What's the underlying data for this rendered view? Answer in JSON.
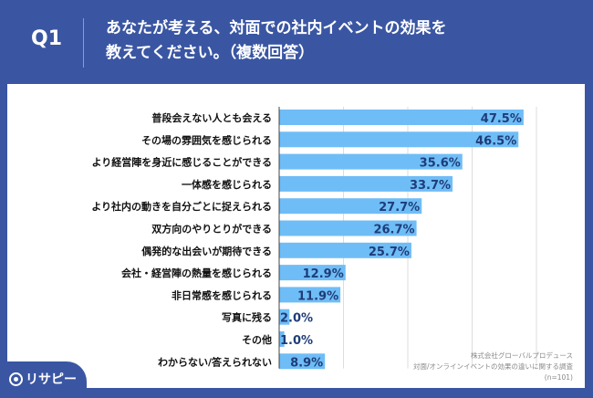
{
  "header": {
    "question_no": "Q1",
    "title_line1": "あなたが考える、対面での社内イベントの効果を",
    "title_line2": "教えてください。（複数回答）"
  },
  "logo": {
    "text": "リサピー"
  },
  "note": {
    "line1": "株式会社グローバルプロデュース",
    "line2": "対面/オンラインイベントの効果の違いに関する調査",
    "line3": "(n=101)"
  },
  "colors": {
    "background": "#3a56a3",
    "bar": "#6fbdf7",
    "label": "#1e3d78"
  },
  "chart_data": {
    "type": "bar",
    "orientation": "horizontal",
    "grid": true,
    "xlim": [
      0,
      62.5
    ],
    "unit": "%",
    "categories": [
      "普段会えない人とも会える",
      "その場の雰囲気を感じられる",
      "より経営陣を身近に感じることができる",
      "一体感を感じられる",
      "より社内の動きを自分ごとに捉えられる",
      "双方向のやりとりができる",
      "偶発的な出会いが期待できる",
      "会社・経営陣の熱量を感じられる",
      "非日常感を感じられる",
      "写真に残る",
      "その他",
      "わからない/答えられない"
    ],
    "values": [
      47.5,
      46.5,
      35.6,
      33.7,
      27.7,
      26.7,
      25.7,
      12.9,
      11.9,
      2.0,
      1.0,
      8.9
    ],
    "value_labels": [
      "47.5%",
      "46.5%",
      "35.6%",
      "33.7%",
      "27.7%",
      "26.7%",
      "25.7%",
      "12.9%",
      "11.9%",
      "2.0%",
      "1.0%",
      "8.9%"
    ]
  }
}
